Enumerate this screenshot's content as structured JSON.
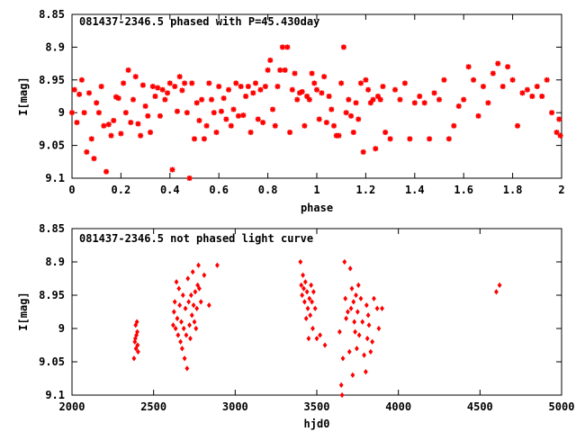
{
  "chart_data": [
    {
      "type": "scatter",
      "title": "081437-2346.5 phased with P=45.430day",
      "xlabel": "phase",
      "ylabel": "I[mag]",
      "xlim": [
        0,
        2
      ],
      "ylim": [
        9.1,
        8.85
      ],
      "y_inverted": true,
      "xticks": [
        "0",
        "0.2",
        "0.4",
        "0.6",
        "0.8",
        "1",
        "1.2",
        "1.4",
        "1.6",
        "1.8",
        "2"
      ],
      "yticks": [
        "8.85",
        "8.9",
        "8.95",
        "9",
        "9.05",
        "9.1"
      ],
      "marker": "star",
      "color": "#ff0000",
      "points": [
        [
          0.0,
          9.0
        ],
        [
          0.01,
          8.965
        ],
        [
          0.02,
          9.015
        ],
        [
          0.03,
          8.972
        ],
        [
          0.04,
          8.95
        ],
        [
          0.05,
          9.0
        ],
        [
          0.06,
          9.06
        ],
        [
          0.07,
          8.97
        ],
        [
          0.08,
          9.04
        ],
        [
          0.09,
          9.07
        ],
        [
          0.1,
          8.985
        ],
        [
          0.11,
          9.0
        ],
        [
          0.12,
          8.96
        ],
        [
          0.13,
          9.02
        ],
        [
          0.14,
          9.09
        ],
        [
          0.15,
          9.018
        ],
        [
          0.16,
          9.035
        ],
        [
          0.17,
          9.012
        ],
        [
          0.18,
          8.976
        ],
        [
          0.19,
          8.978
        ],
        [
          0.2,
          9.032
        ],
        [
          0.21,
          8.955
        ],
        [
          0.22,
          9.0
        ],
        [
          0.23,
          8.935
        ],
        [
          0.24,
          9.015
        ],
        [
          0.25,
          8.98
        ],
        [
          0.26,
          8.945
        ],
        [
          0.27,
          9.017
        ],
        [
          0.28,
          9.035
        ],
        [
          0.29,
          8.958
        ],
        [
          0.3,
          8.99
        ],
        [
          0.31,
          9.005
        ],
        [
          0.32,
          9.03
        ],
        [
          0.33,
          8.96
        ],
        [
          0.34,
          8.975
        ],
        [
          0.35,
          8.962
        ],
        [
          0.36,
          9.005
        ],
        [
          0.37,
          8.965
        ],
        [
          0.38,
          8.98
        ],
        [
          0.39,
          8.97
        ],
        [
          0.4,
          8.955
        ],
        [
          0.41,
          9.087
        ],
        [
          0.42,
          8.96
        ],
        [
          0.43,
          8.998
        ],
        [
          0.44,
          8.945
        ],
        [
          0.45,
          8.966
        ],
        [
          0.46,
          8.955
        ],
        [
          0.47,
          9.0
        ],
        [
          0.48,
          9.1
        ],
        [
          0.49,
          8.955
        ],
        [
          0.5,
          9.04
        ],
        [
          0.51,
          8.985
        ],
        [
          0.52,
          9.012
        ],
        [
          0.53,
          8.98
        ],
        [
          0.54,
          9.04
        ],
        [
          0.55,
          9.02
        ],
        [
          0.56,
          8.955
        ],
        [
          0.57,
          8.98
        ],
        [
          0.58,
          9.0
        ],
        [
          0.59,
          9.03
        ],
        [
          0.6,
          8.96
        ],
        [
          0.61,
          8.998
        ],
        [
          0.62,
          8.978
        ],
        [
          0.63,
          9.01
        ],
        [
          0.64,
          8.965
        ],
        [
          0.65,
          9.02
        ],
        [
          0.66,
          8.995
        ],
        [
          0.67,
          8.955
        ],
        [
          0.68,
          9.005
        ],
        [
          0.69,
          8.96
        ],
        [
          0.7,
          9.004
        ],
        [
          0.71,
          8.975
        ],
        [
          0.72,
          8.96
        ],
        [
          0.73,
          9.03
        ],
        [
          0.74,
          8.97
        ],
        [
          0.75,
          8.955
        ],
        [
          0.76,
          9.01
        ],
        [
          0.77,
          8.965
        ],
        [
          0.78,
          9.015
        ],
        [
          0.79,
          8.96
        ],
        [
          0.8,
          8.935
        ],
        [
          0.81,
          8.92
        ],
        [
          0.82,
          8.995
        ],
        [
          0.83,
          9.02
        ],
        [
          0.84,
          8.96
        ],
        [
          0.85,
          8.935
        ],
        [
          0.86,
          8.9
        ],
        [
          0.87,
          8.935
        ],
        [
          0.88,
          8.9
        ],
        [
          0.89,
          9.03
        ],
        [
          0.9,
          8.965
        ],
        [
          0.91,
          8.94
        ],
        [
          0.92,
          8.98
        ],
        [
          0.93,
          8.97
        ],
        [
          0.94,
          8.968
        ],
        [
          0.95,
          9.02
        ],
        [
          0.96,
          8.975
        ],
        [
          0.97,
          8.98
        ],
        [
          0.98,
          8.94
        ],
        [
          0.99,
          8.955
        ],
        [
          1.0,
          8.965
        ],
        [
          1.01,
          9.01
        ],
        [
          1.02,
          8.97
        ],
        [
          1.03,
          8.945
        ],
        [
          1.04,
          9.015
        ],
        [
          1.05,
          8.975
        ],
        [
          1.06,
          8.995
        ],
        [
          1.07,
          9.02
        ],
        [
          1.08,
          9.035
        ],
        [
          1.09,
          9.035
        ],
        [
          1.1,
          8.955
        ],
        [
          1.11,
          8.9
        ],
        [
          1.12,
          9.0
        ],
        [
          1.13,
          8.98
        ],
        [
          1.14,
          9.005
        ],
        [
          1.15,
          9.03
        ],
        [
          1.16,
          8.985
        ],
        [
          1.17,
          9.01
        ],
        [
          1.18,
          8.955
        ],
        [
          1.19,
          9.06
        ],
        [
          1.2,
          8.95
        ],
        [
          1.21,
          8.965
        ],
        [
          1.22,
          8.985
        ],
        [
          1.23,
          8.98
        ],
        [
          1.24,
          9.055
        ],
        [
          1.25,
          8.975
        ],
        [
          1.26,
          8.98
        ],
        [
          1.27,
          8.96
        ],
        [
          1.28,
          9.03
        ],
        [
          1.3,
          9.04
        ],
        [
          1.32,
          8.965
        ],
        [
          1.34,
          8.98
        ],
        [
          1.36,
          8.955
        ],
        [
          1.38,
          9.04
        ],
        [
          1.4,
          8.985
        ],
        [
          1.42,
          8.975
        ],
        [
          1.44,
          8.985
        ],
        [
          1.46,
          9.04
        ],
        [
          1.48,
          8.97
        ],
        [
          1.5,
          8.98
        ],
        [
          1.52,
          8.95
        ],
        [
          1.54,
          9.04
        ],
        [
          1.56,
          9.02
        ],
        [
          1.58,
          8.99
        ],
        [
          1.6,
          8.98
        ],
        [
          1.62,
          8.93
        ],
        [
          1.64,
          8.95
        ],
        [
          1.66,
          9.005
        ],
        [
          1.68,
          8.96
        ],
        [
          1.7,
          8.985
        ],
        [
          1.72,
          8.94
        ],
        [
          1.74,
          8.925
        ],
        [
          1.76,
          8.96
        ],
        [
          1.78,
          8.93
        ],
        [
          1.8,
          8.95
        ],
        [
          1.82,
          9.02
        ],
        [
          1.84,
          8.97
        ],
        [
          1.86,
          8.965
        ],
        [
          1.88,
          8.975
        ],
        [
          1.9,
          8.96
        ],
        [
          1.92,
          8.975
        ],
        [
          1.94,
          8.95
        ],
        [
          1.96,
          9.0
        ],
        [
          1.98,
          9.03
        ],
        [
          1.99,
          9.01
        ],
        [
          1.995,
          9.035
        ]
      ]
    },
    {
      "type": "scatter",
      "title": "081437-2346.5 not phased light curve",
      "xlabel": "hjd0",
      "ylabel": "I[mag]",
      "xlim": [
        2000,
        5000
      ],
      "ylim": [
        9.1,
        8.85
      ],
      "y_inverted": true,
      "xticks": [
        "2000",
        "2500",
        "3000",
        "3500",
        "4000",
        "4500",
        "5000"
      ],
      "yticks": [
        "8.85",
        "8.9",
        "8.95",
        "9",
        "9.05",
        "9.1"
      ],
      "marker": "diamond",
      "color": "#ff0000",
      "points": [
        [
          2380,
          9.045
        ],
        [
          2385,
          9.02
        ],
        [
          2388,
          9.015
        ],
        [
          2390,
          8.995
        ],
        [
          2392,
          9.03
        ],
        [
          2395,
          9.01
        ],
        [
          2398,
          8.99
        ],
        [
          2400,
          9.005
        ],
        [
          2402,
          9.025
        ],
        [
          2405,
          9.035
        ],
        [
          2620,
          8.995
        ],
        [
          2625,
          8.975
        ],
        [
          2630,
          8.96
        ],
        [
          2635,
          9.0
        ],
        [
          2640,
          8.93
        ],
        [
          2645,
          8.985
        ],
        [
          2650,
          9.01
        ],
        [
          2655,
          8.94
        ],
        [
          2660,
          8.965
        ],
        [
          2665,
          9.02
        ],
        [
          2670,
          8.99
        ],
        [
          2675,
          9.03
        ],
        [
          2680,
          8.95
        ],
        [
          2685,
          9.0
        ],
        [
          2690,
          9.045
        ],
        [
          2695,
          8.97
        ],
        [
          2700,
          9.01
        ],
        [
          2705,
          9.06
        ],
        [
          2710,
          8.925
        ],
        [
          2715,
          8.96
        ],
        [
          2720,
          8.995
        ],
        [
          2725,
          9.015
        ],
        [
          2730,
          8.95
        ],
        [
          2735,
          8.98
        ],
        [
          2740,
          8.915
        ],
        [
          2745,
          8.965
        ],
        [
          2750,
          8.99
        ],
        [
          2755,
          8.945
        ],
        [
          2760,
          9.0
        ],
        [
          2765,
          8.97
        ],
        [
          2770,
          8.935
        ],
        [
          2775,
          8.905
        ],
        [
          2780,
          8.94
        ],
        [
          2790,
          8.96
        ],
        [
          2810,
          8.92
        ],
        [
          2840,
          8.965
        ],
        [
          2890,
          8.905
        ],
        [
          3400,
          8.9
        ],
        [
          3405,
          8.935
        ],
        [
          3410,
          8.95
        ],
        [
          3415,
          8.92
        ],
        [
          3420,
          8.94
        ],
        [
          3425,
          8.96
        ],
        [
          3430,
          8.93
        ],
        [
          3435,
          8.985
        ],
        [
          3440,
          8.945
        ],
        [
          3445,
          8.97
        ],
        [
          3450,
          9.015
        ],
        [
          3455,
          8.955
        ],
        [
          3460,
          8.98
        ],
        [
          3465,
          8.935
        ],
        [
          3470,
          8.96
        ],
        [
          3475,
          9.0
        ],
        [
          3480,
          8.945
        ],
        [
          3490,
          8.97
        ],
        [
          3500,
          9.015
        ],
        [
          3520,
          9.01
        ],
        [
          3550,
          9.025
        ],
        [
          3640,
          9.005
        ],
        [
          3650,
          9.085
        ],
        [
          3655,
          9.1
        ],
        [
          3660,
          9.045
        ],
        [
          3670,
          8.9
        ],
        [
          3675,
          8.955
        ],
        [
          3680,
          8.985
        ],
        [
          3690,
          8.975
        ],
        [
          3700,
          9.035
        ],
        [
          3705,
          8.91
        ],
        [
          3710,
          8.97
        ],
        [
          3715,
          8.94
        ],
        [
          3720,
          9.07
        ],
        [
          3725,
          8.96
        ],
        [
          3730,
          8.99
        ],
        [
          3735,
          9.005
        ],
        [
          3740,
          8.95
        ],
        [
          3745,
          9.03
        ],
        [
          3750,
          8.975
        ],
        [
          3755,
          8.935
        ],
        [
          3760,
          9.01
        ],
        [
          3770,
          8.955
        ],
        [
          3780,
          8.99
        ],
        [
          3790,
          9.04
        ],
        [
          3800,
          9.065
        ],
        [
          3805,
          8.965
        ],
        [
          3810,
          9.015
        ],
        [
          3815,
          8.98
        ],
        [
          3820,
          8.995
        ],
        [
          3830,
          9.035
        ],
        [
          3840,
          9.02
        ],
        [
          3850,
          8.955
        ],
        [
          3870,
          8.97
        ],
        [
          3880,
          9.0
        ],
        [
          3900,
          8.97
        ],
        [
          4600,
          8.945
        ],
        [
          4620,
          8.935
        ]
      ]
    }
  ]
}
